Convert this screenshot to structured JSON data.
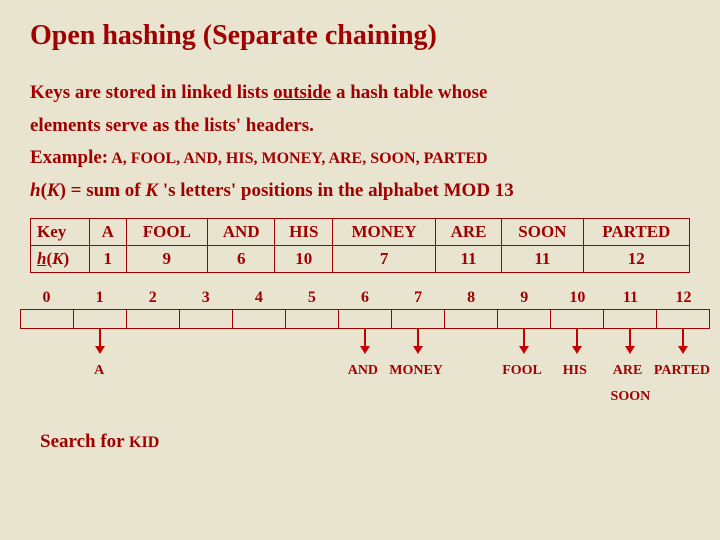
{
  "title": "Open hashing (Separate chaining)",
  "desc_line1a": "Keys are stored in linked lists ",
  "desc_underlined": "outside",
  "desc_line1b": " a hash table whose",
  "desc_line2": "elements serve as the lists' headers.",
  "example_prefix": "Example:",
  "example_keys": " A, FOOL, AND, HIS, MONEY, ARE, SOON, PARTED",
  "hash_fn_lhs": "h",
  "hash_fn_paren": "(K)",
  "hash_fn_rhs": " = sum of ",
  "hash_fn_k": "K",
  "hash_fn_tail": " 's letters' positions in the alphabet MOD 13",
  "table": {
    "row1_head": "Key",
    "row1": [
      "A",
      "FOOL",
      "AND",
      "HIS",
      "MONEY",
      "ARE",
      "SOON",
      "PARTED"
    ],
    "row2_head": "h(K)",
    "row2": [
      "1",
      "9",
      "6",
      "10",
      "7",
      "11",
      "11",
      "12"
    ]
  },
  "indices": [
    "0",
    "1",
    "2",
    "3",
    "4",
    "5",
    "6",
    "7",
    "8",
    "9",
    "10",
    "11",
    "12"
  ],
  "arrows": [
    false,
    true,
    false,
    false,
    false,
    false,
    true,
    true,
    false,
    true,
    true,
    true,
    true
  ],
  "labels1": [
    "",
    "A",
    "",
    "",
    "",
    "",
    "AND",
    "MONEY",
    "",
    "FOOL",
    "HIS",
    "ARE",
    "PARTED"
  ],
  "labels2": [
    "",
    "",
    "",
    "",
    "",
    "",
    "",
    "",
    "",
    "",
    "",
    "SOON",
    ""
  ],
  "search_text": "Search for ",
  "search_key": "KID"
}
